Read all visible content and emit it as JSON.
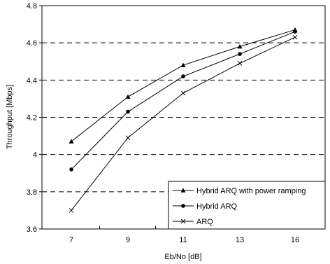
{
  "chart_data": {
    "type": "line",
    "xlabel": "Eb/No [dB]",
    "ylabel": "Throughput [Mbps]",
    "x": [
      7,
      9,
      11,
      13,
      16
    ],
    "ylim": [
      3.6,
      4.8
    ],
    "yticks": [
      "3.6",
      "3.8",
      "4",
      "4.2",
      "4.4",
      "4.6",
      "4.8"
    ],
    "xticks": [
      "7",
      "9",
      "11",
      "13",
      "16"
    ],
    "grid": "horizontal dashed",
    "legend_position": "bottom-right",
    "series": [
      {
        "name": "Hybrid ARQ with power ramping",
        "marker": "triangle",
        "values": [
          4.07,
          4.31,
          4.48,
          4.58,
          4.67
        ]
      },
      {
        "name": "Hybrid ARQ",
        "marker": "circle",
        "values": [
          3.92,
          4.23,
          4.42,
          4.54,
          4.66
        ]
      },
      {
        "name": "ARQ",
        "marker": "x",
        "values": [
          3.7,
          4.09,
          4.33,
          4.49,
          4.63
        ]
      }
    ]
  }
}
